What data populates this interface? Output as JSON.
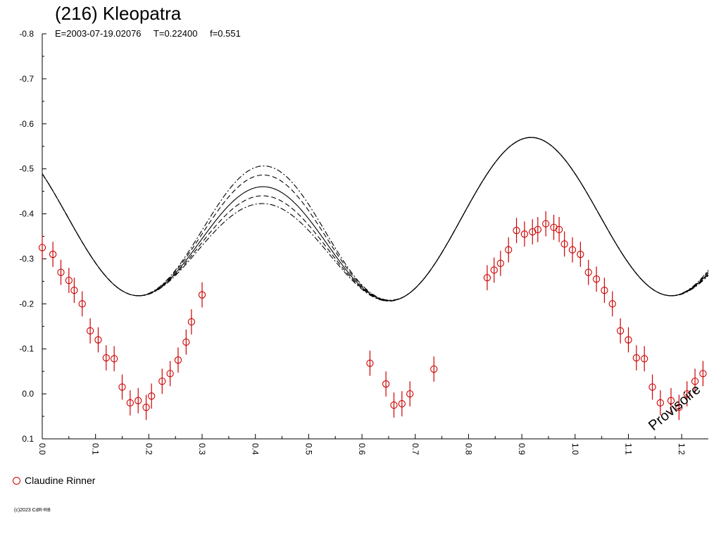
{
  "chart_data": {
    "type": "line",
    "title": "(216) Kleopatra",
    "subtitle_parts": [
      "E=2003-07-19.02076",
      "T=0.22400",
      "f=0.551"
    ],
    "xlabel": "",
    "ylabel": "",
    "xlim": [
      0,
      1.25
    ],
    "ylim": [
      -0.8,
      0.1
    ],
    "y_reversed": true,
    "x_tick_labels": [
      "0.0",
      "0.1",
      "0.2",
      "0.3",
      "0.4",
      "0.5",
      "0.6",
      "0.7",
      "0.8",
      "0.9",
      "1.0",
      "1.1",
      "1.2"
    ],
    "y_tick_labels": [
      "-0.8",
      "-0.7",
      "-0.6",
      "-0.5",
      "-0.4",
      "-0.3",
      "-0.2",
      "-0.1",
      "0.0",
      "0.1"
    ],
    "x_ticks": [
      0,
      0.1,
      0.2,
      0.3,
      0.4,
      0.5,
      0.6,
      0.7,
      0.8,
      0.9,
      1.0,
      1.1,
      1.2
    ],
    "y_ticks": [
      -0.8,
      -0.7,
      -0.6,
      -0.5,
      -0.4,
      -0.3,
      -0.2,
      -0.1,
      0.0,
      0.1
    ],
    "grid": false,
    "legend_position": "bottom-left",
    "watermark": "Provisoire",
    "curves": [
      {
        "style": "solid",
        "amplitude_scale": 1.0
      },
      {
        "style": "dashed",
        "amplitude_scale": 1.09
      },
      {
        "style": "dashed",
        "amplitude_scale": 0.93
      },
      {
        "style": "dash-dot",
        "amplitude_scale": 1.16
      },
      {
        "style": "dash-dot",
        "amplitude_scale": 0.87
      }
    ],
    "series": [
      {
        "name": "Claudine Rinner",
        "color": "#cc0000",
        "marker": "open-circle",
        "error_bar": 0.028,
        "points": [
          [
            0.0,
            -0.325
          ],
          [
            0.02,
            -0.31
          ],
          [
            0.035,
            -0.27
          ],
          [
            0.05,
            -0.252
          ],
          [
            0.06,
            -0.23
          ],
          [
            0.075,
            -0.2
          ],
          [
            0.09,
            -0.14
          ],
          [
            0.105,
            -0.12
          ],
          [
            0.12,
            -0.08
          ],
          [
            0.135,
            -0.078
          ],
          [
            0.15,
            -0.015
          ],
          [
            0.165,
            0.02
          ],
          [
            0.18,
            0.015
          ],
          [
            0.195,
            0.03
          ],
          [
            0.205,
            0.005
          ],
          [
            0.225,
            -0.028
          ],
          [
            0.24,
            -0.045
          ],
          [
            0.255,
            -0.075
          ],
          [
            0.27,
            -0.115
          ],
          [
            0.28,
            -0.16
          ],
          [
            0.3,
            -0.22
          ],
          [
            0.615,
            -0.068
          ],
          [
            0.645,
            -0.022
          ],
          [
            0.66,
            0.025
          ],
          [
            0.675,
            0.022
          ],
          [
            0.69,
            0.0
          ],
          [
            0.735,
            -0.055
          ],
          [
            0.835,
            -0.258
          ],
          [
            0.848,
            -0.275
          ],
          [
            0.86,
            -0.29
          ],
          [
            0.875,
            -0.32
          ],
          [
            0.89,
            -0.363
          ],
          [
            0.905,
            -0.355
          ],
          [
            0.92,
            -0.36
          ],
          [
            0.93,
            -0.365
          ],
          [
            0.945,
            -0.378
          ],
          [
            0.96,
            -0.37
          ],
          [
            0.97,
            -0.365
          ],
          [
            0.98,
            -0.333
          ],
          [
            0.995,
            -0.32
          ],
          [
            1.01,
            -0.31
          ],
          [
            1.025,
            -0.27
          ],
          [
            1.04,
            -0.255
          ],
          [
            1.055,
            -0.23
          ],
          [
            1.07,
            -0.2
          ],
          [
            1.085,
            -0.14
          ],
          [
            1.1,
            -0.12
          ],
          [
            1.115,
            -0.08
          ],
          [
            1.13,
            -0.078
          ],
          [
            1.145,
            -0.015
          ],
          [
            1.16,
            0.02
          ],
          [
            1.18,
            0.015
          ],
          [
            1.195,
            0.03
          ],
          [
            1.21,
            0.0
          ],
          [
            1.225,
            -0.028
          ],
          [
            1.24,
            -0.045
          ]
        ]
      }
    ]
  },
  "footer": {
    "copyright": "(c)2023 CdR-RB"
  }
}
